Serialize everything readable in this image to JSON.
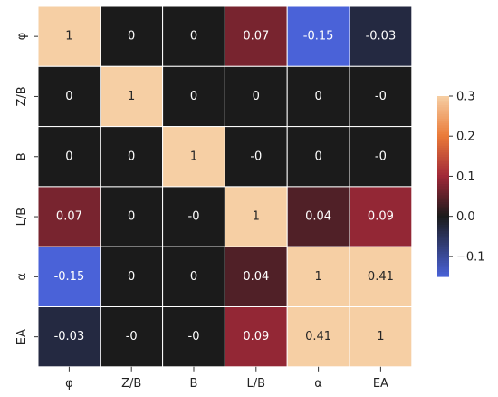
{
  "chart_data": {
    "type": "heatmap",
    "title": "",
    "xlabel": "",
    "ylabel": "",
    "x_labels": [
      "φ",
      "Z/B",
      "B",
      "L/B",
      "α",
      "EA"
    ],
    "y_labels": [
      "φ",
      "Z/B",
      "B",
      "L/B",
      "α",
      "EA"
    ],
    "values": [
      [
        1,
        0,
        0,
        0.07,
        -0.15,
        -0.03
      ],
      [
        0,
        1,
        0,
        0,
        0,
        0
      ],
      [
        0,
        0,
        1,
        0,
        0,
        0
      ],
      [
        0.07,
        0,
        0,
        1,
        0.04,
        0.09
      ],
      [
        -0.15,
        0,
        0,
        0.04,
        1,
        0.41
      ],
      [
        -0.03,
        0,
        0,
        0.09,
        0.41,
        1
      ]
    ],
    "annotations": [
      [
        "1",
        "0",
        "0",
        "0.07",
        "-0.15",
        "-0.03"
      ],
      [
        "0",
        "1",
        "0",
        "0",
        "0",
        "-0"
      ],
      [
        "0",
        "0",
        "1",
        "-0",
        "0",
        "-0"
      ],
      [
        "0.07",
        "0",
        "-0",
        "1",
        "0.04",
        "0.09"
      ],
      [
        "-0.15",
        "0",
        "0",
        "0.04",
        "1",
        "0.41"
      ],
      [
        "-0.03",
        "-0",
        "-0",
        "0.09",
        "0.41",
        "1"
      ]
    ],
    "colorbar": {
      "range": [
        -0.15,
        0.3
      ],
      "ticks": [
        -0.1,
        0.0,
        0.1,
        0.2,
        0.3
      ],
      "tick_labels": [
        "−0.1",
        "0.0",
        "0.1",
        "0.2",
        "0.3"
      ],
      "colormap": "icefire-center0"
    },
    "grid": true,
    "colors": {
      "negative": "#4a62d8",
      "center": "#1b1b1b",
      "mid_positive": "#a02838",
      "orange": "#ea7a38",
      "positive_max": "#f6cfa4",
      "cell_border": "#ffffff"
    }
  }
}
